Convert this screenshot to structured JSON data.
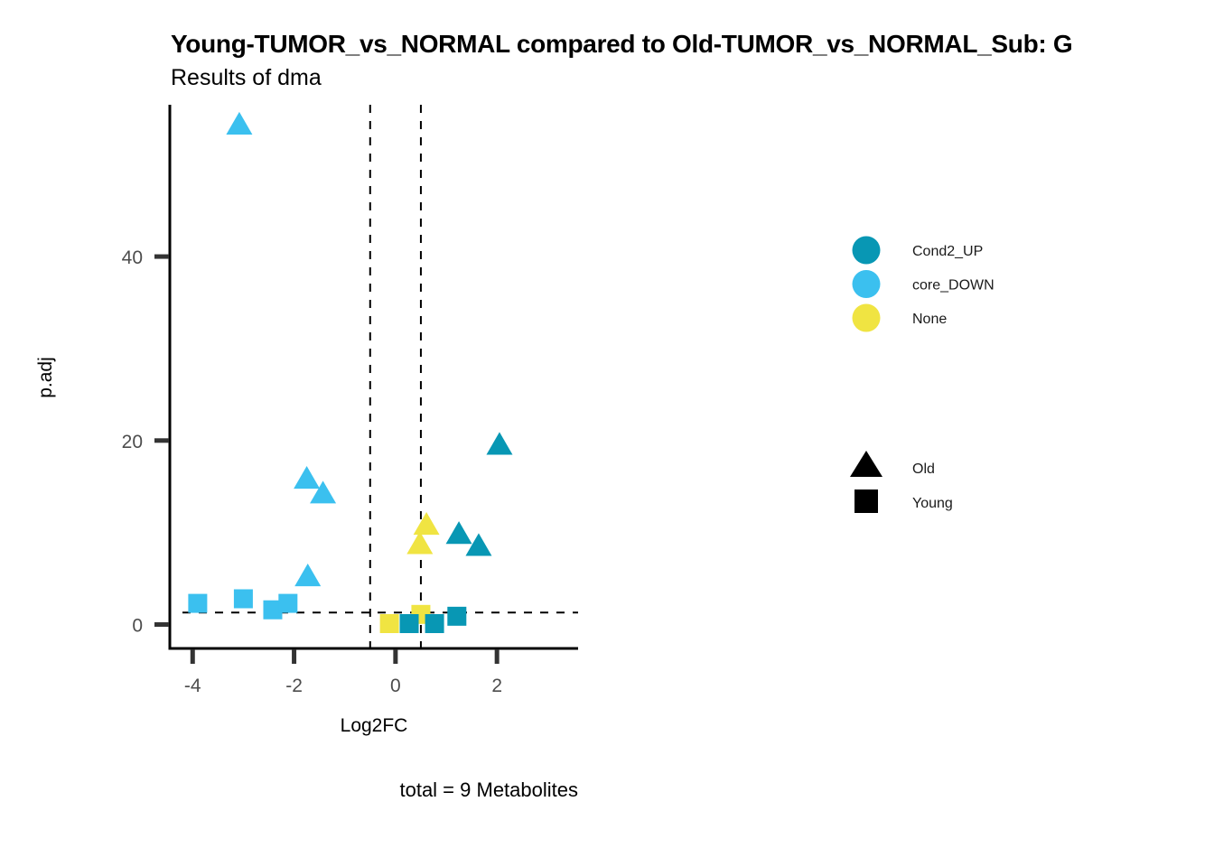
{
  "chart_data": {
    "type": "scatter",
    "title": "Young-TUMOR_vs_NORMAL compared to Old-TUMOR_vs_NORMAL_Sub: G",
    "subtitle": "Results of dma",
    "xlabel": "Log2FC",
    "ylabel": "p.adj",
    "caption": "total = 9 Metabolites",
    "xlim": [
      -4.45,
      3.6
    ],
    "ylim": [
      -2.6,
      56.5
    ],
    "x_ticks": [
      -4,
      -2,
      0,
      2
    ],
    "x_tick_labels": [
      "-4",
      "-2",
      "0",
      "2"
    ],
    "y_ticks": [
      0,
      20,
      40
    ],
    "y_tick_labels": [
      "0",
      "20",
      "40"
    ],
    "grid": false,
    "reference_lines": {
      "vertical": [
        -0.5,
        0.5
      ],
      "horizontal": [
        1.3
      ]
    },
    "color_legend": {
      "position": "right",
      "entries": [
        {
          "label": "Cond2_UP",
          "color": "#0897B4"
        },
        {
          "label": "core_DOWN",
          "color": "#3BC0EF"
        },
        {
          "label": "None",
          "color": "#F0E442"
        }
      ]
    },
    "shape_legend": {
      "position": "right",
      "entries": [
        {
          "label": "Old",
          "shape": "triangle"
        },
        {
          "label": "Young",
          "shape": "square"
        }
      ]
    },
    "points": [
      {
        "x": -3.08,
        "y": 54.2,
        "group": "core_DOWN",
        "shape": "Old"
      },
      {
        "x": -1.75,
        "y": 15.7,
        "group": "core_DOWN",
        "shape": "Old"
      },
      {
        "x": -1.43,
        "y": 14.1,
        "group": "core_DOWN",
        "shape": "Old"
      },
      {
        "x": -1.73,
        "y": 5.1,
        "group": "core_DOWN",
        "shape": "Old"
      },
      {
        "x": 2.05,
        "y": 19.4,
        "group": "Cond2_UP",
        "shape": "Old"
      },
      {
        "x": 1.25,
        "y": 9.7,
        "group": "Cond2_UP",
        "shape": "Old"
      },
      {
        "x": 1.64,
        "y": 8.4,
        "group": "Cond2_UP",
        "shape": "Old"
      },
      {
        "x": 0.61,
        "y": 10.7,
        "group": "None",
        "shape": "Old"
      },
      {
        "x": 0.48,
        "y": 8.6,
        "group": "None",
        "shape": "Old"
      },
      {
        "x": -3.9,
        "y": 2.3,
        "group": "core_DOWN",
        "shape": "Young"
      },
      {
        "x": -3.0,
        "y": 2.8,
        "group": "core_DOWN",
        "shape": "Young"
      },
      {
        "x": -2.42,
        "y": 1.6,
        "group": "core_DOWN",
        "shape": "Young"
      },
      {
        "x": -2.12,
        "y": 2.3,
        "group": "core_DOWN",
        "shape": "Young"
      },
      {
        "x": -0.12,
        "y": 0.1,
        "group": "None",
        "shape": "Young"
      },
      {
        "x": 0.5,
        "y": 1.1,
        "group": "None",
        "shape": "Young"
      },
      {
        "x": 0.27,
        "y": 0.1,
        "group": "Cond2_UP",
        "shape": "Young"
      },
      {
        "x": 0.77,
        "y": 0.1,
        "group": "Cond2_UP",
        "shape": "Young"
      },
      {
        "x": 1.21,
        "y": 0.9,
        "group": "Cond2_UP",
        "shape": "Young"
      }
    ]
  }
}
